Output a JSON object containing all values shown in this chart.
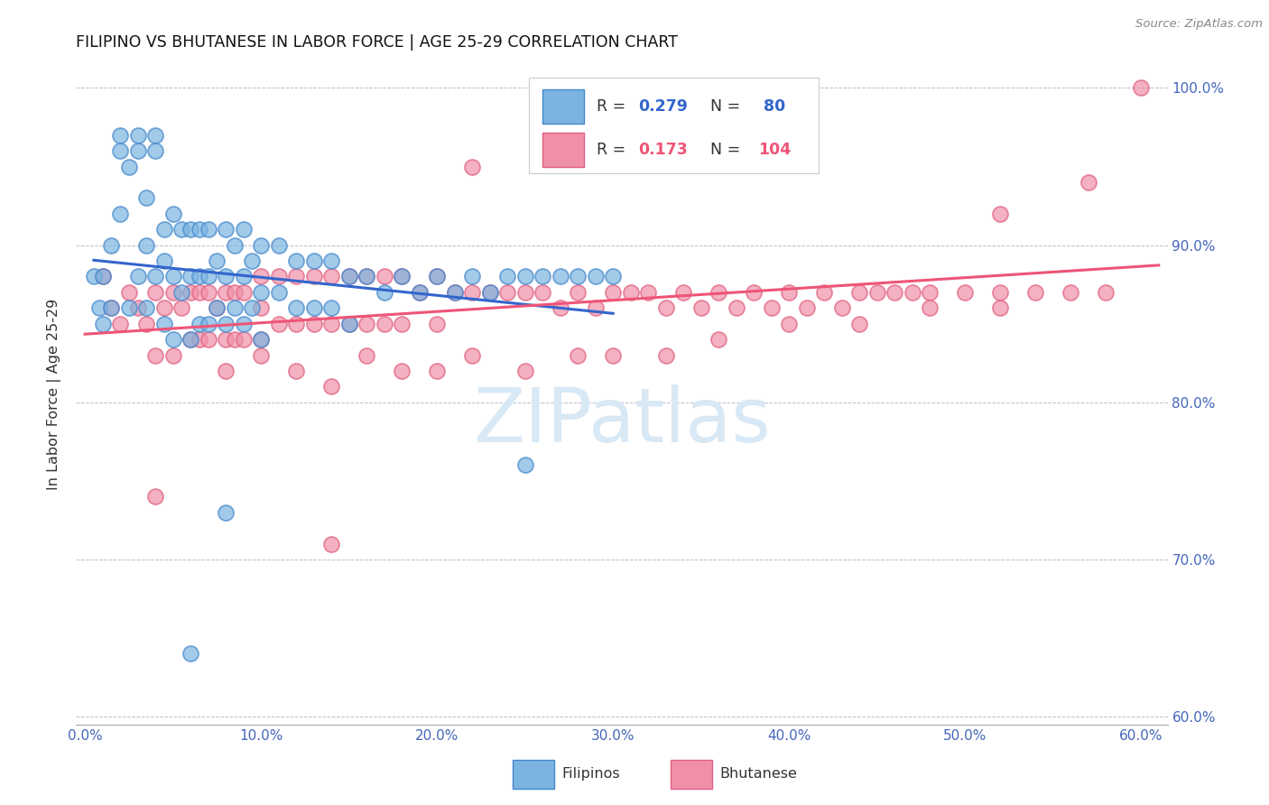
{
  "title": "FILIPINO VS BHUTANESE IN LABOR FORCE | AGE 25-29 CORRELATION CHART",
  "source": "Source: ZipAtlas.com",
  "ylabel": "In Labor Force | Age 25-29",
  "xlim": [
    -0.005,
    0.615
  ],
  "ylim": [
    0.595,
    1.015
  ],
  "xticks": [
    0.0,
    0.1,
    0.2,
    0.3,
    0.4,
    0.5,
    0.6
  ],
  "yticks": [
    0.6,
    0.7,
    0.8,
    0.9,
    1.0
  ],
  "ytick_labels": [
    "60.0%",
    "70.0%",
    "80.0%",
    "90.0%",
    "100.0%"
  ],
  "xtick_labels": [
    "0.0%",
    "10.0%",
    "20.0%",
    "30.0%",
    "40.0%",
    "50.0%",
    "60.0%"
  ],
  "color_blue": "#7BB4E0",
  "color_pink": "#F090A8",
  "color_blue_edge": "#4488CC",
  "color_pink_edge": "#E06080",
  "color_trend_blue": "#3366CC",
  "color_trend_pink": "#EE5577",
  "color_axis_labels": "#4466BB",
  "watermark": "ZIPatlas",
  "watermark_color": "#D8E8F5",
  "legend_r1_text": "R = ",
  "legend_r1_val": "0.279",
  "legend_n1_text": "N = ",
  "legend_n1_val": " 80",
  "legend_r2_text": "R = ",
  "legend_r2_val": "0.173",
  "legend_n2_text": "N = ",
  "legend_n2_val": "104",
  "fil_x": [
    0.005,
    0.008,
    0.01,
    0.01,
    0.015,
    0.015,
    0.02,
    0.02,
    0.02,
    0.025,
    0.025,
    0.03,
    0.03,
    0.03,
    0.035,
    0.035,
    0.035,
    0.04,
    0.04,
    0.04,
    0.045,
    0.045,
    0.045,
    0.05,
    0.05,
    0.05,
    0.055,
    0.055,
    0.06,
    0.06,
    0.06,
    0.065,
    0.065,
    0.065,
    0.07,
    0.07,
    0.07,
    0.075,
    0.075,
    0.08,
    0.08,
    0.08,
    0.085,
    0.085,
    0.09,
    0.09,
    0.09,
    0.095,
    0.095,
    0.1,
    0.1,
    0.1,
    0.11,
    0.11,
    0.12,
    0.12,
    0.13,
    0.13,
    0.14,
    0.14,
    0.15,
    0.15,
    0.16,
    0.17,
    0.18,
    0.19,
    0.2,
    0.21,
    0.22,
    0.23,
    0.24,
    0.25,
    0.26,
    0.27,
    0.28,
    0.29,
    0.3,
    0.25,
    0.08,
    0.06
  ],
  "fil_y": [
    0.88,
    0.86,
    0.88,
    0.85,
    0.9,
    0.86,
    0.96,
    0.97,
    0.92,
    0.95,
    0.86,
    0.97,
    0.96,
    0.88,
    0.93,
    0.9,
    0.86,
    0.97,
    0.96,
    0.88,
    0.91,
    0.89,
    0.85,
    0.92,
    0.88,
    0.84,
    0.91,
    0.87,
    0.91,
    0.88,
    0.84,
    0.91,
    0.88,
    0.85,
    0.91,
    0.88,
    0.85,
    0.89,
    0.86,
    0.91,
    0.88,
    0.85,
    0.9,
    0.86,
    0.91,
    0.88,
    0.85,
    0.89,
    0.86,
    0.9,
    0.87,
    0.84,
    0.9,
    0.87,
    0.89,
    0.86,
    0.89,
    0.86,
    0.89,
    0.86,
    0.88,
    0.85,
    0.88,
    0.87,
    0.88,
    0.87,
    0.88,
    0.87,
    0.88,
    0.87,
    0.88,
    0.88,
    0.88,
    0.88,
    0.88,
    0.88,
    0.88,
    0.76,
    0.73,
    0.64
  ],
  "bhu_x": [
    0.01,
    0.015,
    0.02,
    0.025,
    0.03,
    0.035,
    0.04,
    0.04,
    0.045,
    0.05,
    0.05,
    0.055,
    0.06,
    0.06,
    0.065,
    0.065,
    0.07,
    0.07,
    0.075,
    0.08,
    0.08,
    0.085,
    0.085,
    0.09,
    0.09,
    0.1,
    0.1,
    0.1,
    0.11,
    0.11,
    0.12,
    0.12,
    0.13,
    0.13,
    0.14,
    0.14,
    0.15,
    0.15,
    0.16,
    0.16,
    0.17,
    0.17,
    0.18,
    0.18,
    0.19,
    0.2,
    0.2,
    0.21,
    0.22,
    0.23,
    0.24,
    0.25,
    0.26,
    0.27,
    0.28,
    0.29,
    0.3,
    0.31,
    0.32,
    0.33,
    0.34,
    0.35,
    0.36,
    0.37,
    0.38,
    0.39,
    0.4,
    0.41,
    0.42,
    0.43,
    0.44,
    0.45,
    0.46,
    0.47,
    0.48,
    0.5,
    0.52,
    0.54,
    0.56,
    0.58,
    0.08,
    0.1,
    0.12,
    0.14,
    0.16,
    0.18,
    0.2,
    0.22,
    0.25,
    0.28,
    0.3,
    0.33,
    0.36,
    0.4,
    0.44,
    0.48,
    0.52,
    0.04,
    0.52,
    0.6,
    0.57,
    0.3,
    0.22,
    0.14
  ],
  "bhu_y": [
    0.88,
    0.86,
    0.85,
    0.87,
    0.86,
    0.85,
    0.87,
    0.83,
    0.86,
    0.87,
    0.83,
    0.86,
    0.87,
    0.84,
    0.87,
    0.84,
    0.87,
    0.84,
    0.86,
    0.87,
    0.84,
    0.87,
    0.84,
    0.87,
    0.84,
    0.88,
    0.86,
    0.83,
    0.88,
    0.85,
    0.88,
    0.85,
    0.88,
    0.85,
    0.88,
    0.85,
    0.88,
    0.85,
    0.88,
    0.85,
    0.88,
    0.85,
    0.88,
    0.85,
    0.87,
    0.88,
    0.85,
    0.87,
    0.87,
    0.87,
    0.87,
    0.87,
    0.87,
    0.86,
    0.87,
    0.86,
    0.87,
    0.87,
    0.87,
    0.86,
    0.87,
    0.86,
    0.87,
    0.86,
    0.87,
    0.86,
    0.87,
    0.86,
    0.87,
    0.86,
    0.87,
    0.87,
    0.87,
    0.87,
    0.87,
    0.87,
    0.87,
    0.87,
    0.87,
    0.87,
    0.82,
    0.84,
    0.82,
    0.81,
    0.83,
    0.82,
    0.82,
    0.83,
    0.82,
    0.83,
    0.83,
    0.83,
    0.84,
    0.85,
    0.85,
    0.86,
    0.86,
    0.74,
    0.92,
    1.0,
    0.94,
    0.96,
    0.95,
    0.71
  ]
}
